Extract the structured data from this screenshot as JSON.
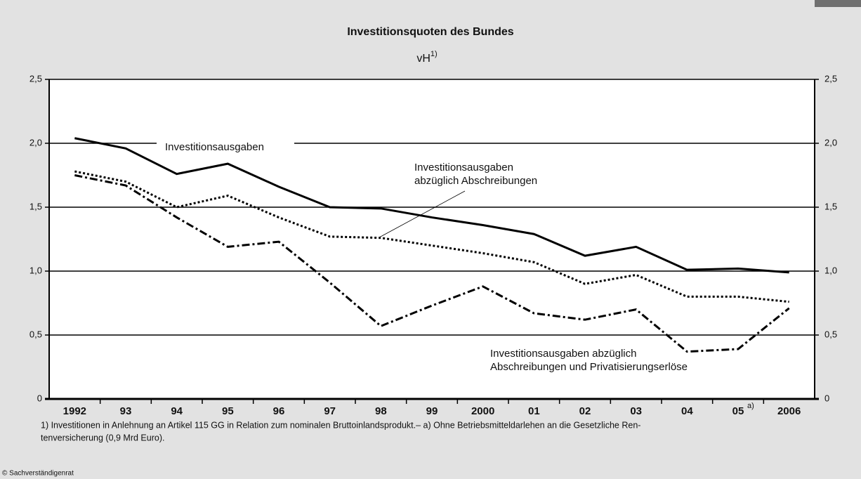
{
  "chart_data": {
    "type": "line",
    "title": "Investitionsquoten des Bundes",
    "unit": "vH",
    "unit_note": "1)",
    "categories": [
      "1992",
      "93",
      "94",
      "95",
      "96",
      "97",
      "98",
      "99",
      "2000",
      "01",
      "02",
      "03",
      "04",
      "05",
      "2006"
    ],
    "category_note": {
      "index": 13,
      "label": "a)"
    },
    "series": [
      {
        "label_lines": [
          "Investitionsausgaben"
        ],
        "color": "#000000",
        "style": "solid",
        "values": [
          2.04,
          1.96,
          1.76,
          1.84,
          1.66,
          1.5,
          1.49,
          1.42,
          1.36,
          1.29,
          1.12,
          1.19,
          1.01,
          1.02,
          0.99
        ]
      },
      {
        "label_lines": [
          "Investitionsausgaben",
          "abzüglich Abschreibungen"
        ],
        "color": "#000000",
        "style": "dotted",
        "values": [
          1.78,
          1.7,
          1.5,
          1.59,
          1.42,
          1.27,
          1.26,
          1.2,
          1.14,
          1.07,
          0.9,
          0.97,
          0.8,
          0.8,
          0.76
        ]
      },
      {
        "label_lines": [
          "Investitionsausgaben abzüglich",
          "Abschreibungen und Privatisierungserlöse"
        ],
        "color": "#000000",
        "style": "dashdot",
        "values": [
          1.75,
          1.67,
          1.42,
          1.19,
          1.23,
          0.91,
          0.57,
          0.73,
          0.88,
          0.67,
          0.62,
          0.7,
          0.37,
          0.39,
          0.71
        ]
      }
    ],
    "ylim": [
      0,
      2.5
    ],
    "yticks": [
      0,
      {
        "value": 0.5,
        "label": "0,5"
      },
      {
        "value": 1.0,
        "label": "1,0"
      },
      {
        "value": 1.5,
        "label": "1,5"
      },
      {
        "value": 2.0,
        "label": "2,0"
      },
      {
        "value": 2.5,
        "label": "2,5"
      }
    ],
    "grid": true,
    "footnote": [
      "1) Investitionen in Anlehnung an Artikel 115 GG in Relation zum nominalen Bruttoinlandsprodukt.– a) Ohne Betriebsmitteldarlehen an die Gesetzliche Ren-",
      "tenversicherung (0,9 Mrd Euro)."
    ],
    "source": "© Sachverständigenrat"
  }
}
